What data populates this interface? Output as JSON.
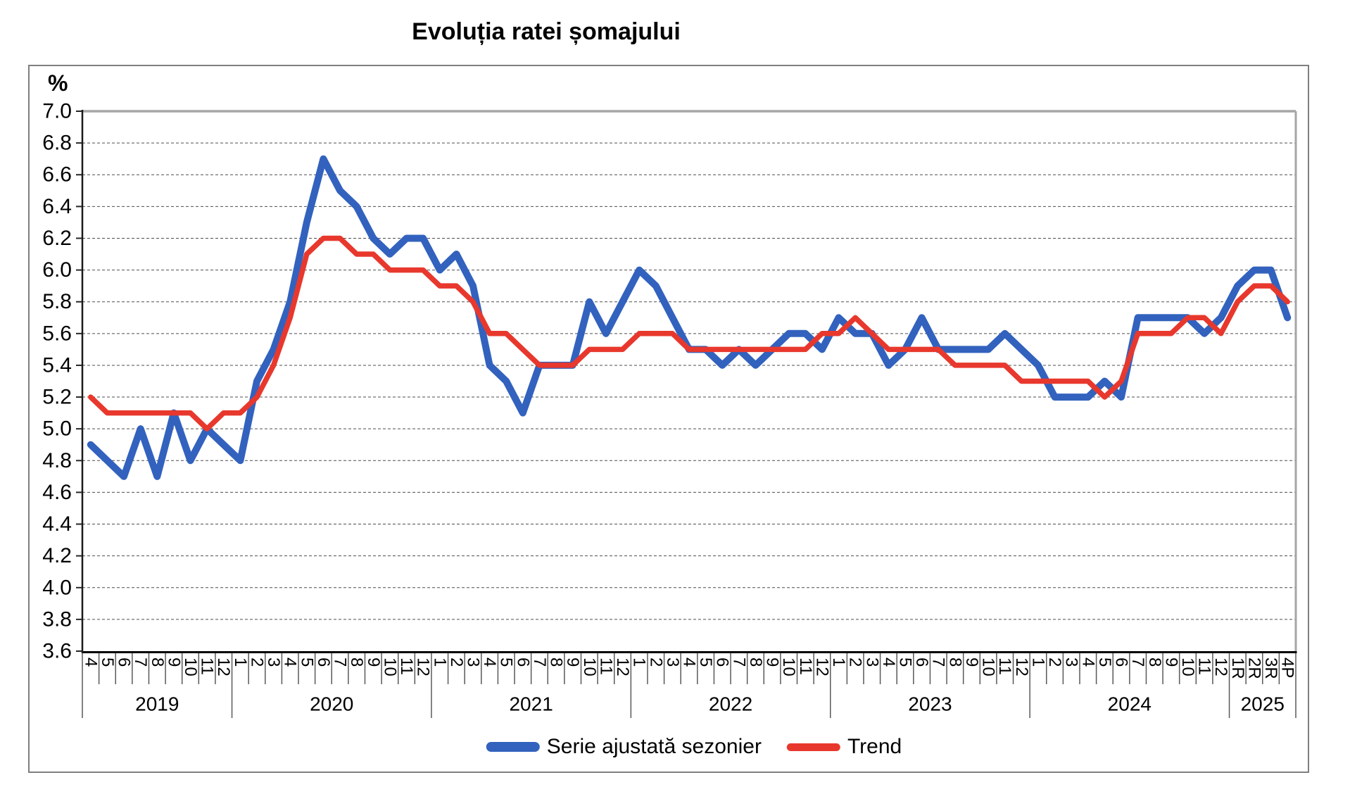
{
  "title": "Evoluția ratei șomajului",
  "y_axis": {
    "unit": "%",
    "min": 3.6,
    "max": 7.0,
    "step": 0.2,
    "tick_labels": [
      "7.0",
      "6.8",
      "6.6",
      "6.4",
      "6.2",
      "6.0",
      "5.8",
      "5.6",
      "5.4",
      "5.2",
      "5.0",
      "4.8",
      "4.6",
      "4.4",
      "4.2",
      "4.0",
      "3.8",
      "3.6"
    ]
  },
  "x_axis": {
    "years": [
      {
        "label": "2019",
        "months": [
          "4",
          "5",
          "6",
          "7",
          "8",
          "9",
          "10",
          "11",
          "12"
        ]
      },
      {
        "label": "2020",
        "months": [
          "1",
          "2",
          "3",
          "4",
          "5",
          "6",
          "7",
          "8",
          "9",
          "10",
          "11",
          "12"
        ]
      },
      {
        "label": "2021",
        "months": [
          "1",
          "2",
          "3",
          "4",
          "5",
          "6",
          "7",
          "8",
          "9",
          "10",
          "11",
          "12"
        ]
      },
      {
        "label": "2022",
        "months": [
          "1",
          "2",
          "3",
          "4",
          "5",
          "6",
          "7",
          "8",
          "9",
          "10",
          "11",
          "12"
        ]
      },
      {
        "label": "2023",
        "months": [
          "1",
          "2",
          "3",
          "4",
          "5",
          "6",
          "7",
          "8",
          "9",
          "10",
          "11",
          "12"
        ]
      },
      {
        "label": "2024",
        "months": [
          "1",
          "2",
          "3",
          "4",
          "5",
          "6",
          "7",
          "8",
          "9",
          "10",
          "11",
          "12"
        ]
      },
      {
        "label": "2025",
        "months": [
          "1R",
          "2R",
          "3R",
          "4P"
        ]
      }
    ]
  },
  "legend": {
    "items": [
      {
        "label": "Serie ajustată sezonier",
        "color": "#3262be",
        "swatch_height": 14
      },
      {
        "label": "Trend",
        "color": "#e8382d",
        "swatch_height": 11
      }
    ]
  },
  "chart_data": {
    "type": "line",
    "title": "Evoluția ratei șomajului",
    "ylabel": "%",
    "ylim": [
      3.6,
      7.0
    ],
    "ytick_step": 0.2,
    "grid": "horizontal-dashed",
    "legend_position": "bottom-center",
    "categories": [
      "2019-4",
      "2019-5",
      "2019-6",
      "2019-7",
      "2019-8",
      "2019-9",
      "2019-10",
      "2019-11",
      "2019-12",
      "2020-1",
      "2020-2",
      "2020-3",
      "2020-4",
      "2020-5",
      "2020-6",
      "2020-7",
      "2020-8",
      "2020-9",
      "2020-10",
      "2020-11",
      "2020-12",
      "2021-1",
      "2021-2",
      "2021-3",
      "2021-4",
      "2021-5",
      "2021-6",
      "2021-7",
      "2021-8",
      "2021-9",
      "2021-10",
      "2021-11",
      "2021-12",
      "2022-1",
      "2022-2",
      "2022-3",
      "2022-4",
      "2022-5",
      "2022-6",
      "2022-7",
      "2022-8",
      "2022-9",
      "2022-10",
      "2022-11",
      "2022-12",
      "2023-1",
      "2023-2",
      "2023-3",
      "2023-4",
      "2023-5",
      "2023-6",
      "2023-7",
      "2023-8",
      "2023-9",
      "2023-10",
      "2023-11",
      "2023-12",
      "2024-1",
      "2024-2",
      "2024-3",
      "2024-4",
      "2024-5",
      "2024-6",
      "2024-7",
      "2024-8",
      "2024-9",
      "2024-10",
      "2024-11",
      "2024-12",
      "2025-1R",
      "2025-2R",
      "2025-3R",
      "2025-4P"
    ],
    "series": [
      {
        "name": "Serie ajustată sezonier",
        "color": "#3262be",
        "line_width": 10,
        "values": [
          4.9,
          4.8,
          4.7,
          5.0,
          4.7,
          5.1,
          4.8,
          5.0,
          4.9,
          4.8,
          5.3,
          5.5,
          5.8,
          6.3,
          6.7,
          6.5,
          6.4,
          6.2,
          6.1,
          6.2,
          6.2,
          6.0,
          6.1,
          5.9,
          5.4,
          5.3,
          5.1,
          5.4,
          5.4,
          5.4,
          5.8,
          5.6,
          5.8,
          6.0,
          5.9,
          5.7,
          5.5,
          5.5,
          5.4,
          5.5,
          5.4,
          5.5,
          5.6,
          5.6,
          5.5,
          5.7,
          5.6,
          5.6,
          5.4,
          5.5,
          5.7,
          5.5,
          5.5,
          5.5,
          5.5,
          5.6,
          5.5,
          5.4,
          5.2,
          5.2,
          5.2,
          5.3,
          5.2,
          5.7,
          5.7,
          5.7,
          5.7,
          5.6,
          5.7,
          5.9,
          6.0,
          6.0,
          5.7
        ]
      },
      {
        "name": "Trend",
        "color": "#e8382d",
        "line_width": 7.5,
        "values": [
          5.2,
          5.1,
          5.1,
          5.1,
          5.1,
          5.1,
          5.1,
          5.0,
          5.1,
          5.1,
          5.2,
          5.4,
          5.7,
          6.1,
          6.2,
          6.2,
          6.1,
          6.1,
          6.0,
          6.0,
          6.0,
          5.9,
          5.9,
          5.8,
          5.6,
          5.6,
          5.5,
          5.4,
          5.4,
          5.4,
          5.5,
          5.5,
          5.5,
          5.6,
          5.6,
          5.6,
          5.5,
          5.5,
          5.5,
          5.5,
          5.5,
          5.5,
          5.5,
          5.5,
          5.6,
          5.6,
          5.7,
          5.6,
          5.5,
          5.5,
          5.5,
          5.5,
          5.4,
          5.4,
          5.4,
          5.4,
          5.3,
          5.3,
          5.3,
          5.3,
          5.3,
          5.2,
          5.3,
          5.6,
          5.6,
          5.6,
          5.7,
          5.7,
          5.6,
          5.8,
          5.9,
          5.9,
          5.8
        ]
      }
    ]
  }
}
